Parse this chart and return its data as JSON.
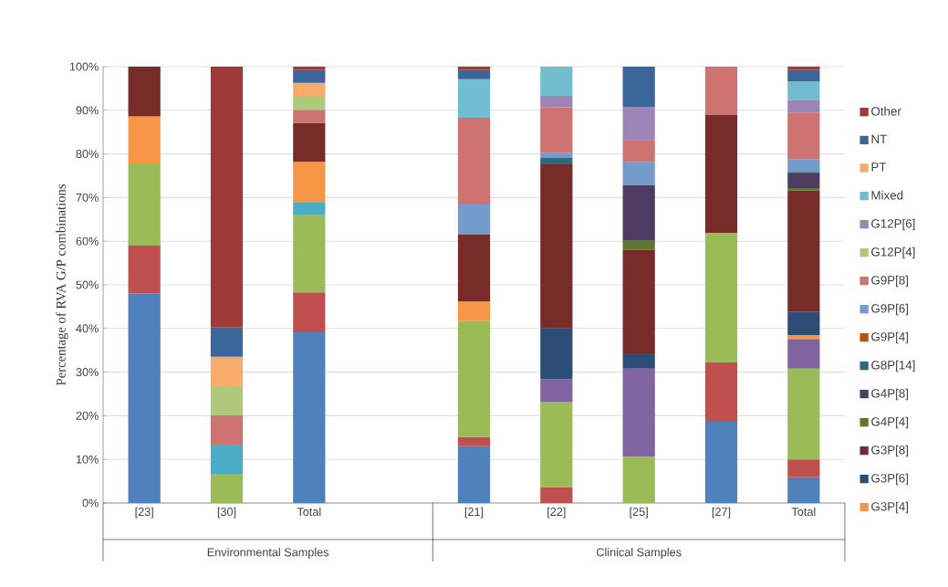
{
  "chart_data": {
    "type": "bar",
    "stacked": true,
    "categories": [
      "[23]",
      "[30]",
      "Total",
      null,
      "[21]",
      "[22]",
      "[25]",
      "[27]",
      "Total"
    ],
    "ylabel": "Percentage of RVA G/P combinations",
    "ylim": [
      0,
      100
    ],
    "yticks": [
      {
        "value": 0,
        "label": "0%"
      },
      {
        "value": 10,
        "label": "10%"
      },
      {
        "value": 20,
        "label": "20%"
      },
      {
        "value": 30,
        "label": "30%"
      },
      {
        "value": 40,
        "label": "40%"
      },
      {
        "value": 50,
        "label": "50%"
      },
      {
        "value": 60,
        "label": "60%"
      },
      {
        "value": 70,
        "label": "70%"
      },
      {
        "value": 80,
        "label": "80%"
      },
      {
        "value": 90,
        "label": "90%"
      },
      {
        "value": 100,
        "label": "100%"
      }
    ],
    "grid": "y",
    "legend": "right",
    "annotations": [
      "Environmental Samples",
      "Clinical Samples"
    ],
    "series": [
      {
        "color": "#4f81bd",
        "values": [
          48.0,
          null,
          39.1,
          null,
          13.0,
          null,
          null,
          18.6,
          5.9
        ]
      },
      {
        "color": "#c0504d",
        "values": [
          11.0,
          null,
          9.2,
          null,
          2.1,
          3.6,
          null,
          13.6,
          4.1
        ]
      },
      {
        "color": "#9bbb59",
        "values": [
          18.6,
          6.7,
          17.8,
          null,
          26.6,
          19.5,
          10.6,
          29.7,
          20.8
        ]
      },
      {
        "color": "#8064a2",
        "values": [
          null,
          null,
          null,
          null,
          null,
          5.3,
          20.2,
          null,
          6.8
        ]
      },
      {
        "color": "#4bacc6",
        "values": [
          null,
          6.7,
          2.9,
          null,
          null,
          null,
          null,
          null,
          null
        ]
      },
      {
        "name": "G3P[4]",
        "color": "#f79646",
        "values": [
          11.0,
          null,
          9.2,
          null,
          4.5,
          null,
          null,
          null,
          0.9
        ]
      },
      {
        "name": "G3P[6]",
        "color": "#2c4d75",
        "values": [
          null,
          null,
          null,
          null,
          null,
          11.6,
          3.5,
          null,
          5.3
        ]
      },
      {
        "name": "G3P[8]",
        "color": "#772c2a",
        "values": [
          11.4,
          null,
          8.9,
          null,
          15.4,
          37.6,
          23.7,
          27.0,
          27.8
        ]
      },
      {
        "name": "G4P[4]",
        "color": "#5f7630",
        "values": [
          null,
          null,
          null,
          null,
          null,
          null,
          2.1,
          null,
          0.6
        ]
      },
      {
        "name": "G4P[8]",
        "color": "#4d3b62",
        "values": [
          null,
          null,
          null,
          null,
          null,
          null,
          12.8,
          null,
          3.3
        ]
      },
      {
        "name": "G8P[14]",
        "color": "#2c6b7b",
        "values": [
          null,
          null,
          null,
          null,
          null,
          1.5,
          null,
          null,
          0.4
        ]
      },
      {
        "name": "G9P[4]",
        "color": "#b65708",
        "values": [
          null,
          null,
          null,
          null,
          null,
          null,
          null,
          null,
          null
        ]
      },
      {
        "name": "G9P[6]",
        "color": "#739bcc",
        "values": [
          null,
          null,
          null,
          null,
          6.8,
          1.2,
          5.3,
          null,
          2.9
        ]
      },
      {
        "name": "G9P[8]",
        "color": "#cd7371",
        "values": [
          null,
          6.7,
          3.0,
          null,
          19.9,
          10.4,
          5.0,
          11.1,
          10.7
        ]
      },
      {
        "name": "G12P[4]",
        "color": "#afc97a",
        "values": [
          null,
          6.7,
          3.2,
          null,
          null,
          null,
          null,
          null,
          null
        ]
      },
      {
        "name": "G12P[6]",
        "color": "#9c84b6",
        "values": [
          null,
          null,
          null,
          null,
          null,
          2.6,
          7.5,
          null,
          2.9
        ]
      },
      {
        "name": "Mixed",
        "color": "#72bed0",
        "values": [
          null,
          null,
          null,
          null,
          8.8,
          6.7,
          null,
          null,
          4.2
        ]
      },
      {
        "name": "PT",
        "color": "#f9ab6b",
        "values": [
          null,
          6.7,
          3.0,
          null,
          null,
          null,
          null,
          null,
          null
        ]
      },
      {
        "name": "NT",
        "color": "#3a6699",
        "values": [
          null,
          6.7,
          2.9,
          null,
          2.1,
          null,
          9.3,
          null,
          2.6
        ]
      },
      {
        "name": "Other",
        "color": "#9e3b39",
        "values": [
          null,
          59.8,
          0.8,
          null,
          0.8,
          null,
          null,
          null,
          0.8
        ]
      }
    ]
  }
}
